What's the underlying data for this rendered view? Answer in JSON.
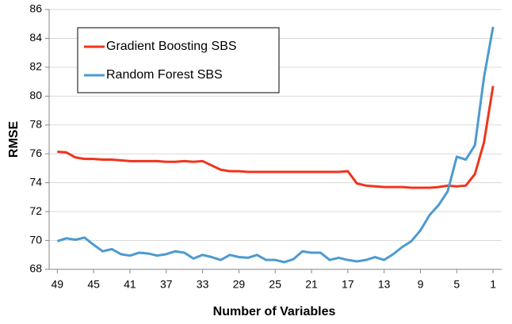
{
  "chart_data": {
    "type": "line",
    "x_label": "Number of Variables",
    "y_label": "RMSE",
    "x": [
      49,
      48,
      47,
      46,
      45,
      44,
      43,
      42,
      41,
      40,
      39,
      38,
      37,
      36,
      35,
      34,
      33,
      32,
      31,
      30,
      29,
      28,
      27,
      26,
      25,
      24,
      23,
      22,
      21,
      20,
      19,
      18,
      17,
      16,
      15,
      14,
      13,
      12,
      11,
      10,
      9,
      8,
      7,
      6,
      5,
      4,
      3,
      2,
      1
    ],
    "series": [
      {
        "name": "Gradient Boosting SBS",
        "color": "#f0341c",
        "values": [
          76.15,
          76.1,
          75.75,
          75.65,
          75.65,
          75.6,
          75.6,
          75.55,
          75.5,
          75.5,
          75.5,
          75.5,
          75.45,
          75.45,
          75.5,
          75.45,
          75.5,
          75.2,
          74.9,
          74.8,
          74.8,
          74.75,
          74.75,
          74.75,
          74.75,
          74.75,
          74.75,
          74.75,
          74.75,
          74.75,
          74.75,
          74.75,
          74.8,
          73.95,
          73.8,
          73.75,
          73.7,
          73.7,
          73.7,
          73.65,
          73.65,
          73.65,
          73.7,
          73.8,
          73.75,
          73.8,
          74.6,
          76.8,
          80.7
        ]
      },
      {
        "name": "Random Forest SBS",
        "color": "#4d9ad0",
        "values": [
          69.95,
          70.15,
          70.05,
          70.2,
          69.7,
          69.25,
          69.4,
          69.05,
          68.95,
          69.15,
          69.1,
          68.95,
          69.05,
          69.25,
          69.15,
          68.75,
          69.0,
          68.85,
          68.65,
          69.0,
          68.85,
          68.8,
          69.0,
          68.65,
          68.65,
          68.5,
          68.7,
          69.25,
          69.15,
          69.15,
          68.65,
          68.8,
          68.65,
          68.55,
          68.65,
          68.85,
          68.65,
          69.05,
          69.55,
          69.95,
          70.7,
          71.75,
          72.45,
          73.4,
          75.8,
          75.6,
          76.6,
          81.3,
          84.8
        ]
      }
    ],
    "xlim": [
      49.9,
      0.05
    ],
    "xticks": [
      49,
      45,
      41,
      37,
      33,
      29,
      25,
      21,
      17,
      13,
      9,
      5,
      1
    ],
    "ylim": [
      68,
      86
    ],
    "yticks": [
      68,
      70,
      72,
      74,
      76,
      78,
      80,
      82,
      84,
      86
    ],
    "grid": true,
    "legend": "upper left"
  }
}
